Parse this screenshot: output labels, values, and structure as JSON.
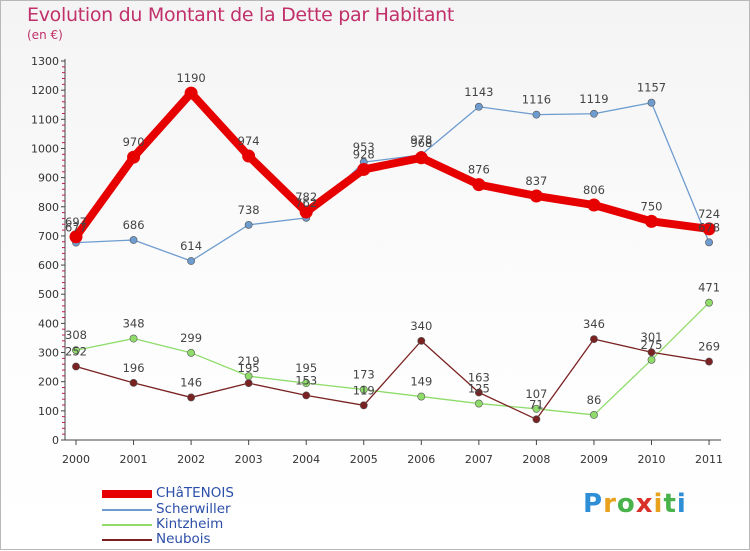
{
  "chart_data": {
    "type": "line",
    "title": "Evolution du Montant de la Dette par Habitant",
    "subtitle": "(en €)",
    "categories": [
      "2000",
      "2001",
      "2002",
      "2003",
      "2004",
      "2005",
      "2006",
      "2007",
      "2008",
      "2009",
      "2010",
      "2011"
    ],
    "ylim": [
      0,
      1300
    ],
    "yticks": [
      0,
      100,
      200,
      300,
      400,
      500,
      600,
      700,
      800,
      900,
      1000,
      1100,
      1200,
      1300
    ],
    "grid": false,
    "legend_position": "bottom-left",
    "series": [
      {
        "name": "CHâTENOIS",
        "color": "#e60000",
        "values": [
          697,
          970,
          1190,
          974,
          782,
          928,
          968,
          876,
          837,
          806,
          750,
          724
        ]
      },
      {
        "name": "Scherwiller",
        "color": "#6e9ccf",
        "values": [
          677,
          686,
          614,
          738,
          762,
          953,
          978,
          1143,
          1116,
          1119,
          1157,
          678
        ]
      },
      {
        "name": "Kintzheim",
        "color": "#8fdc6a",
        "values": [
          308,
          348,
          299,
          219,
          195,
          173,
          149,
          125,
          107,
          86,
          275,
          471
        ]
      },
      {
        "name": "Neubois",
        "color": "#7a2222",
        "values": [
          252,
          196,
          146,
          195,
          153,
          119,
          340,
          163,
          71,
          346,
          301,
          269
        ]
      }
    ]
  },
  "logo": {
    "text": "Proxiti"
  }
}
